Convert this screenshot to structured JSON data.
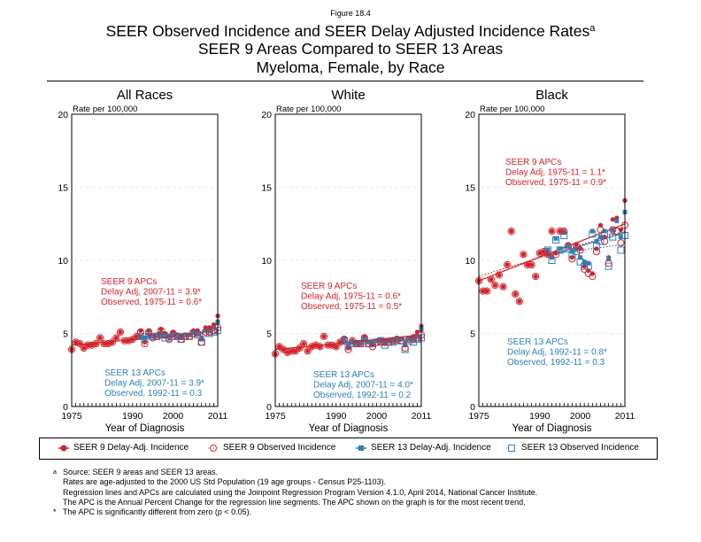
{
  "figure_label": "Figure 18.4",
  "title": {
    "line1": "SEER Observed Incidence and SEER Delay Adjusted Incidence Rates",
    "line1_superscript": "a",
    "line2": "SEER 9 Areas Compared to SEER 13 Areas",
    "line3": "Myeloma, Female, by Race"
  },
  "colors": {
    "seer9": "#d2232a",
    "seer13": "#2f7fb6",
    "frame": "#000000",
    "gridline": "#e0e0e0"
  },
  "legend": {
    "items": [
      {
        "label": "SEER 9 Delay-Adj. Incidence",
        "symbol": "filled-circle-red"
      },
      {
        "label": "SEER 9 Observed Incidence",
        "symbol": "open-circle-red"
      },
      {
        "label": "SEER 13 Delay-Adj. Incidence",
        "symbol": "filled-square-blue"
      },
      {
        "label": "SEER 13 Observed Incidence",
        "symbol": "open-square-blue"
      }
    ]
  },
  "footnotes": [
    {
      "mark": "a",
      "text": "Source: SEER 9 areas and SEER 13 areas."
    },
    {
      "mark": "",
      "text": "Rates are age-adjusted to the 2000 US Std Population (19 age groups - Census P25-1103)."
    },
    {
      "mark": "",
      "text": "Regression lines and APCs are calculated using the Joinpoint Regression Program Version 4.1.0, April 2014, National Cancer Institute."
    },
    {
      "mark": "",
      "text": "The APC is the Annual Percent Change for the regression line segments. The APC shown on the graph is for the most recent trend."
    },
    {
      "mark": "*",
      "text": "The APC is significantly different from zero (p < 0.05)."
    }
  ],
  "chart_data": [
    {
      "type": "scatter",
      "title": "All Races",
      "xlabel": "Year of Diagnosis",
      "ylabel": "Rate per 100,000",
      "xlim": [
        1975,
        2011
      ],
      "ylim": [
        0,
        20
      ],
      "xticks": [
        1975,
        1990,
        2000,
        2011
      ],
      "yticks": [
        0,
        5,
        10,
        15,
        20
      ],
      "grid": "horizontal-dashed",
      "seer9_apc": {
        "heading": "SEER 9 APCs",
        "delay": "Delay Adj, 2007-11 = 3.9*",
        "observed": "Observed, 1975-11 = 0.6*",
        "position": "middle-left"
      },
      "seer13_apc": {
        "heading": "SEER 13 APCs",
        "delay": "Delay Adj, 2007-11 = 3.9*",
        "observed": "Observed, 1992-11 = 0.3",
        "position": "bottom-left"
      },
      "series": [
        {
          "name": "SEER 9 Delay-Adj. Incidence",
          "years": [
            1975,
            2011
          ],
          "values": [
            3.9,
            4.4,
            4.3,
            4.0,
            4.2,
            4.2,
            4.3,
            4.7,
            4.3,
            4.3,
            4.4,
            4.7,
            5.1,
            4.5,
            4.5,
            4.6,
            4.8,
            5.2,
            4.4,
            5.2,
            4.8,
            4.9,
            5.3,
            5.0,
            4.7,
            5.1,
            4.9,
            4.7,
            4.9,
            4.9,
            5.2,
            5.2,
            4.7,
            5.4,
            5.4,
            5.6,
            6.2
          ]
        },
        {
          "name": "SEER 9 Observed Incidence",
          "years": [
            1975,
            2011
          ],
          "values": [
            3.9,
            4.4,
            4.3,
            4.0,
            4.2,
            4.2,
            4.3,
            4.7,
            4.3,
            4.3,
            4.4,
            4.7,
            5.1,
            4.5,
            4.5,
            4.6,
            4.8,
            5.1,
            4.3,
            5.1,
            4.7,
            4.8,
            5.2,
            4.9,
            4.6,
            5.0,
            4.8,
            4.6,
            4.8,
            4.8,
            5.0,
            5.0,
            4.4,
            5.1,
            5.1,
            5.2,
            5.4
          ]
        },
        {
          "name": "SEER 13 Delay-Adj. Incidence",
          "years": [
            1992,
            2011
          ],
          "values": [
            4.8,
            4.7,
            4.9,
            4.8,
            4.9,
            5.0,
            4.8,
            4.8,
            4.9,
            4.8,
            4.7,
            4.9,
            4.9,
            5.1,
            5.0,
            4.6,
            5.2,
            5.2,
            5.4,
            5.8
          ]
        },
        {
          "name": "SEER 13 Observed Incidence",
          "years": [
            1992,
            2011
          ],
          "values": [
            4.8,
            4.6,
            4.9,
            4.8,
            4.8,
            4.9,
            4.7,
            4.7,
            4.8,
            4.8,
            4.6,
            4.8,
            4.8,
            5.0,
            4.9,
            4.4,
            5.0,
            5.0,
            5.1,
            5.2
          ]
        }
      ],
      "trend_lines": [
        {
          "series": "SEER 9 Delay-Adj. Incidence",
          "style": "solid",
          "points": [
            [
              1975,
              4.2
            ],
            [
              2007,
              5.0
            ],
            [
              2011,
              5.8
            ]
          ]
        },
        {
          "series": "SEER 9 Observed Incidence",
          "style": "dotted",
          "points": [
            [
              1975,
              4.2
            ],
            [
              2011,
              5.2
            ]
          ]
        },
        {
          "series": "SEER 13 Delay-Adj. Incidence",
          "style": "solid",
          "points": [
            [
              1992,
              4.8
            ],
            [
              2007,
              5.0
            ],
            [
              2011,
              5.7
            ]
          ]
        },
        {
          "series": "SEER 13 Observed Incidence",
          "style": "dotted",
          "points": [
            [
              1992,
              4.8
            ],
            [
              2011,
              5.1
            ]
          ]
        }
      ]
    },
    {
      "type": "scatter",
      "title": "White",
      "xlabel": "Year of Diagnosis",
      "ylabel": "Rate per 100,000",
      "xlim": [
        1975,
        2011
      ],
      "ylim": [
        0,
        20
      ],
      "xticks": [
        1975,
        1990,
        2000,
        2011
      ],
      "yticks": [
        0,
        5,
        10,
        15,
        20
      ],
      "grid": "horizontal-dashed",
      "seer9_apc": {
        "heading": "SEER 9 APCs",
        "delay": "Delay Adj, 1975-11 = 0.6*",
        "observed": "Observed, 1975-11 = 0.5*",
        "position": "middle-left"
      },
      "seer13_apc": {
        "heading": "SEER 13 APCs",
        "delay": "Delay Adj, 2007-11 = 4.0*",
        "observed": "Observed, 1992-11 = 0.2",
        "position": "bottom-center"
      },
      "series": [
        {
          "name": "SEER 9 Delay-Adj. Incidence",
          "years": [
            1975,
            2011
          ],
          "values": [
            3.6,
            4.1,
            3.9,
            3.7,
            3.8,
            3.8,
            4.0,
            4.3,
            3.8,
            4.1,
            4.2,
            4.1,
            4.8,
            4.2,
            4.2,
            4.1,
            4.4,
            4.7,
            4.0,
            4.5,
            4.4,
            4.3,
            4.8,
            4.4,
            4.2,
            4.5,
            4.5,
            4.5,
            4.5,
            4.6,
            4.7,
            4.6,
            4.3,
            4.7,
            4.8,
            5.1,
            5.5
          ]
        },
        {
          "name": "SEER 9 Observed Incidence",
          "years": [
            1975,
            2011
          ],
          "values": [
            3.6,
            4.1,
            3.9,
            3.7,
            3.8,
            3.8,
            4.0,
            4.3,
            3.8,
            4.1,
            4.2,
            4.1,
            4.8,
            4.2,
            4.2,
            4.1,
            4.4,
            4.6,
            3.9,
            4.5,
            4.3,
            4.3,
            4.7,
            4.3,
            4.1,
            4.4,
            4.4,
            4.4,
            4.4,
            4.5,
            4.6,
            4.5,
            4.0,
            4.6,
            4.6,
            4.7,
            4.9
          ]
        },
        {
          "name": "SEER 13 Delay-Adj. Incidence",
          "years": [
            1992,
            2011
          ],
          "values": [
            4.6,
            4.2,
            4.4,
            4.3,
            4.4,
            4.6,
            4.4,
            4.4,
            4.5,
            4.6,
            4.3,
            4.5,
            4.5,
            4.6,
            4.6,
            4.2,
            4.6,
            4.6,
            4.8,
            5.3
          ]
        },
        {
          "name": "SEER 13 Observed Incidence",
          "years": [
            1992,
            2011
          ],
          "values": [
            4.5,
            4.1,
            4.3,
            4.3,
            4.3,
            4.5,
            4.3,
            4.3,
            4.4,
            4.5,
            4.2,
            4.4,
            4.4,
            4.5,
            4.5,
            3.9,
            4.5,
            4.4,
            4.6,
            4.7
          ]
        }
      ],
      "trend_lines": [
        {
          "series": "SEER 9 Delay-Adj. Incidence",
          "style": "solid",
          "points": [
            [
              1975,
              3.9
            ],
            [
              2011,
              4.9
            ]
          ]
        },
        {
          "series": "SEER 9 Observed Incidence",
          "style": "dotted",
          "points": [
            [
              1975,
              3.9
            ],
            [
              2011,
              4.7
            ]
          ]
        },
        {
          "series": "SEER 13 Delay-Adj. Incidence",
          "style": "solid",
          "points": [
            [
              1992,
              4.4
            ],
            [
              2007,
              4.5
            ],
            [
              2011,
              5.2
            ]
          ]
        },
        {
          "series": "SEER 13 Observed Incidence",
          "style": "dotted",
          "points": [
            [
              1992,
              4.4
            ],
            [
              2011,
              4.6
            ]
          ]
        }
      ]
    },
    {
      "type": "scatter",
      "title": "Black",
      "xlabel": "Year of Diagnosis",
      "ylabel": "Rate per 100,000",
      "xlim": [
        1975,
        2011
      ],
      "ylim": [
        0,
        20
      ],
      "xticks": [
        1975,
        1990,
        2000,
        2011
      ],
      "yticks": [
        0,
        5,
        10,
        15,
        20
      ],
      "grid": "horizontal-dashed",
      "seer9_apc": {
        "heading": "SEER 9 APCs",
        "delay": "Delay Adj, 1975-11 = 1.1*",
        "observed": "Observed, 1975-11 = 0.9*",
        "position": "top-left"
      },
      "seer13_apc": {
        "heading": "SEER 13 APCs",
        "delay": "Delay Adj, 1992-11 = 0.8*",
        "observed": "Observed, 1992-11 = 0.3",
        "position": "bottom-left"
      },
      "series": [
        {
          "name": "SEER 9 Delay-Adj. Incidence",
          "years": [
            1975,
            2011
          ],
          "values": [
            8.6,
            7.9,
            7.9,
            8.7,
            8.3,
            9.0,
            8.2,
            9.7,
            12.0,
            7.7,
            7.2,
            10.4,
            9.7,
            9.7,
            8.9,
            10.5,
            10.6,
            10.4,
            12.0,
            10.5,
            12.0,
            12.0,
            11.1,
            10.2,
            11.1,
            10.8,
            9.6,
            9.3,
            9.1,
            10.8,
            12.4,
            11.6,
            10.2,
            12.8,
            12.9,
            12.1,
            14.1
          ]
        },
        {
          "name": "SEER 9 Observed Incidence",
          "years": [
            1975,
            2011
          ],
          "values": [
            8.6,
            7.9,
            7.9,
            8.7,
            8.3,
            9.0,
            8.2,
            9.7,
            12.0,
            7.7,
            7.2,
            10.4,
            9.7,
            9.7,
            8.9,
            10.5,
            10.6,
            10.4,
            12.0,
            10.4,
            12.0,
            12.0,
            11.0,
            10.1,
            11.0,
            10.7,
            9.4,
            9.1,
            8.9,
            10.6,
            12.1,
            11.3,
            9.8,
            12.1,
            12.0,
            11.2,
            12.4
          ]
        },
        {
          "name": "SEER 13 Delay-Adj. Incidence",
          "years": [
            1992,
            2011
          ],
          "values": [
            10.7,
            10.2,
            11.5,
            10.8,
            11.9,
            11.0,
            10.6,
            10.8,
            10.2,
            9.9,
            9.8,
            12.0,
            11.3,
            11.6,
            12.0,
            10.1,
            12.1,
            12.7,
            11.6,
            13.3
          ]
        },
        {
          "name": "SEER 13 Observed Incidence",
          "years": [
            1992,
            2011
          ],
          "values": [
            10.7,
            10.0,
            11.4,
            10.7,
            11.7,
            10.8,
            10.4,
            10.6,
            9.9,
            9.6,
            9.6,
            11.8,
            11.0,
            11.3,
            11.8,
            9.6,
            11.6,
            12.0,
            10.7,
            11.7
          ]
        }
      ],
      "trend_lines": [
        {
          "series": "SEER 9 Delay-Adj. Incidence",
          "style": "solid",
          "points": [
            [
              1975,
              8.6
            ],
            [
              2011,
              12.5
            ]
          ]
        },
        {
          "series": "SEER 9 Observed Incidence",
          "style": "dotted",
          "points": [
            [
              1975,
              8.9
            ],
            [
              2011,
              12.0
            ]
          ]
        },
        {
          "series": "SEER 13 Delay-Adj. Incidence",
          "style": "solid",
          "points": [
            [
              1992,
              10.3
            ],
            [
              2011,
              11.9
            ]
          ]
        },
        {
          "series": "SEER 13 Observed Incidence",
          "style": "dotted",
          "points": [
            [
              1992,
              10.4
            ],
            [
              2011,
              11.1
            ]
          ]
        }
      ]
    }
  ]
}
